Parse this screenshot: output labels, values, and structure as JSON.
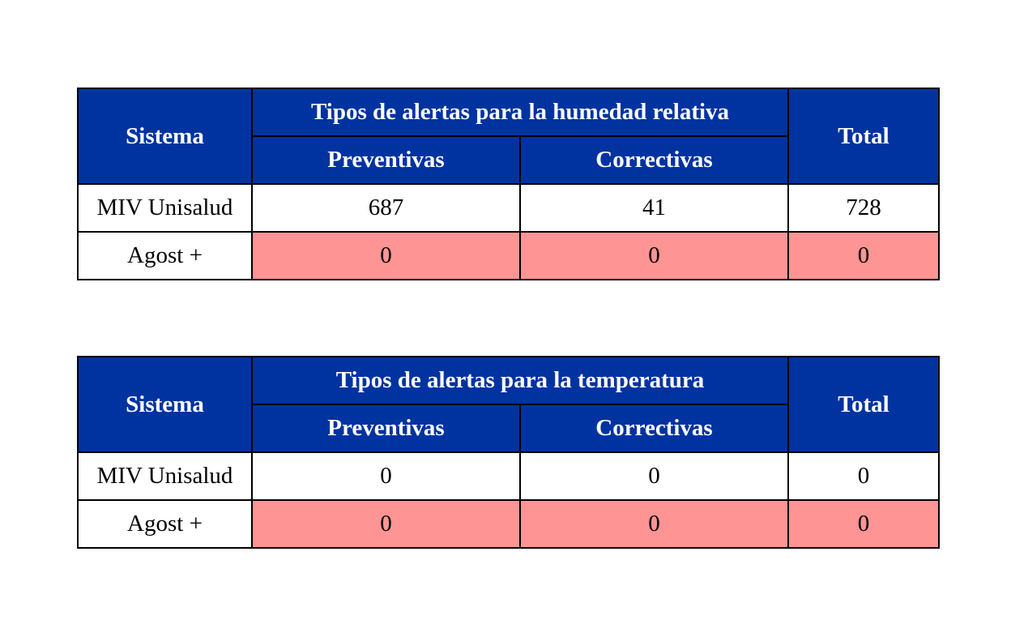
{
  "colors": {
    "header_bg": "#0033a0",
    "header_text": "#ffffff",
    "highlight_bg": "#ff9494",
    "border": "#000000"
  },
  "tables": [
    {
      "col_sistema": "Sistema",
      "group_title": "Tipos de alertas para la humedad relativa",
      "col_preventivas": "Preventivas",
      "col_correctivas": "Correctivas",
      "col_total": "Total",
      "rows": [
        {
          "sistema": "MIV Unisalud",
          "preventivas": "687",
          "correctivas": "41",
          "total": "728"
        },
        {
          "sistema": "Agost +",
          "preventivas": "0",
          "correctivas": "0",
          "total": "0"
        }
      ]
    },
    {
      "col_sistema": "Sistema",
      "group_title": "Tipos de alertas para la temperatura",
      "col_preventivas": "Preventivas",
      "col_correctivas": "Correctivas",
      "col_total": "Total",
      "rows": [
        {
          "sistema": "MIV Unisalud",
          "preventivas": "0",
          "correctivas": "0",
          "total": "0"
        },
        {
          "sistema": "Agost +",
          "preventivas": "0",
          "correctivas": "0",
          "total": "0"
        }
      ]
    }
  ]
}
